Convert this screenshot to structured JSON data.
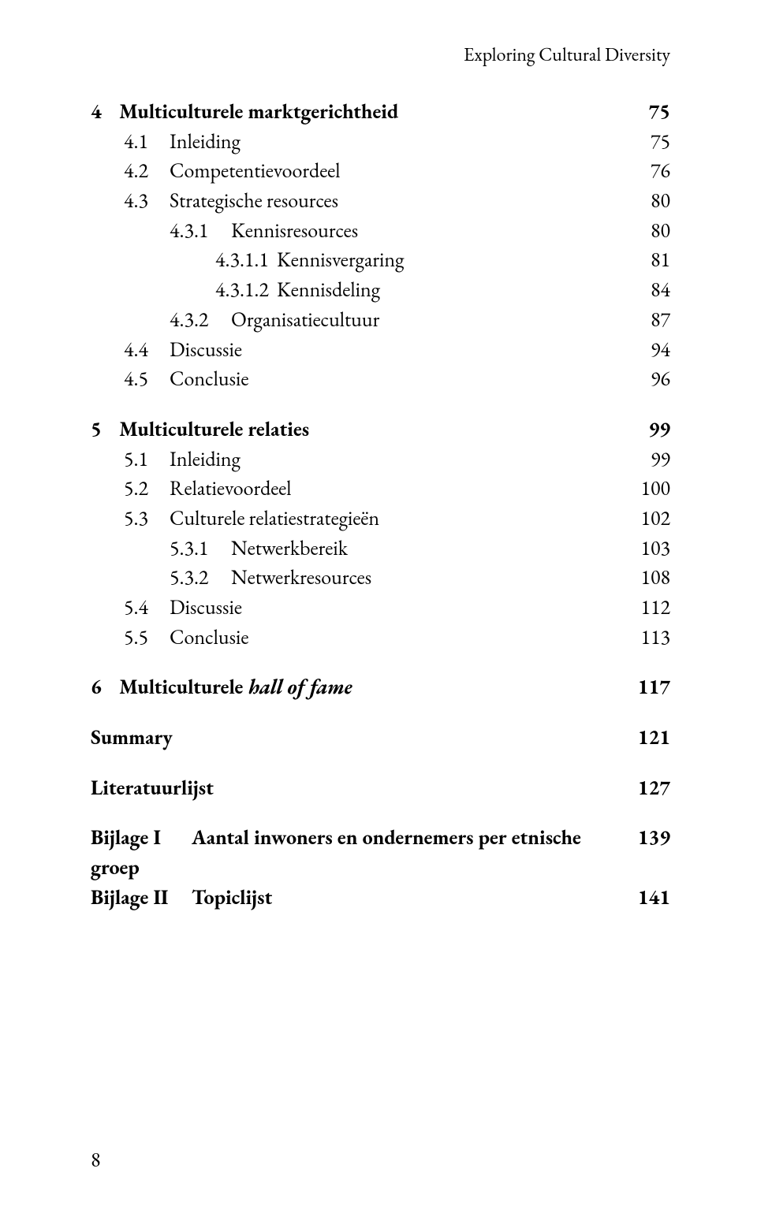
{
  "running_head": "Exploring Cultural Diversity",
  "footer_page_number": "8",
  "chapters": [
    {
      "num": "4",
      "title": "Multiculturele marktgerichtheid",
      "page": "75",
      "items": [
        {
          "lvl": 1,
          "num": "4.1",
          "title": "Inleiding",
          "page": "75"
        },
        {
          "lvl": 1,
          "num": "4.2",
          "title": "Competentievoordeel",
          "page": "76"
        },
        {
          "lvl": 1,
          "num": "4.3",
          "title": "Strategische resources",
          "page": "80"
        },
        {
          "lvl": 2,
          "num": "4.3.1",
          "title": "Kennisresources",
          "page": "80"
        },
        {
          "lvl": 2,
          "num": "4.3.1.1",
          "title": "Kennisvergaring",
          "page": "81",
          "indent_extra": true
        },
        {
          "lvl": 2,
          "num": "4.3.1.2",
          "title": "Kennisdeling",
          "page": "84",
          "indent_extra": true
        },
        {
          "lvl": 2,
          "num": "4.3.2",
          "title": "Organisatiecultuur",
          "page": "87"
        },
        {
          "lvl": 1,
          "num": "4.4",
          "title": "Discussie",
          "page": "94"
        },
        {
          "lvl": 1,
          "num": "4.5",
          "title": "Conclusie",
          "page": "96"
        }
      ]
    },
    {
      "num": "5",
      "title": "Multiculturele relaties",
      "page": "99",
      "items": [
        {
          "lvl": 1,
          "num": "5.1",
          "title": "Inleiding",
          "page": "99"
        },
        {
          "lvl": 1,
          "num": "5.2",
          "title": "Relatievoordeel",
          "page": "100"
        },
        {
          "lvl": 1,
          "num": "5.3",
          "title": "Culturele relatiestrategieën",
          "page": "102"
        },
        {
          "lvl": 2,
          "num": "5.3.1",
          "title": "Netwerkbereik",
          "page": "103"
        },
        {
          "lvl": 2,
          "num": "5.3.2",
          "title": "Netwerkresources",
          "page": "108"
        },
        {
          "lvl": 1,
          "num": "5.4",
          "title": "Discussie",
          "page": "112"
        },
        {
          "lvl": 1,
          "num": "5.5",
          "title": "Conclusie",
          "page": "113"
        }
      ]
    },
    {
      "num": "6",
      "title_pre": "Multiculturele ",
      "title_italic": "hall of fame",
      "page": "117",
      "items": []
    }
  ],
  "standalone": [
    {
      "title": "Summary",
      "page": "121"
    },
    {
      "title": "Literatuurlijst",
      "page": "127"
    }
  ],
  "appendices": [
    {
      "label": "Bijlage I",
      "title": "Aantal inwoners en ondernemers per etnische groep",
      "page": "139"
    },
    {
      "label": "Bijlage II",
      "title": "Topiclijst",
      "page": "141"
    }
  ]
}
